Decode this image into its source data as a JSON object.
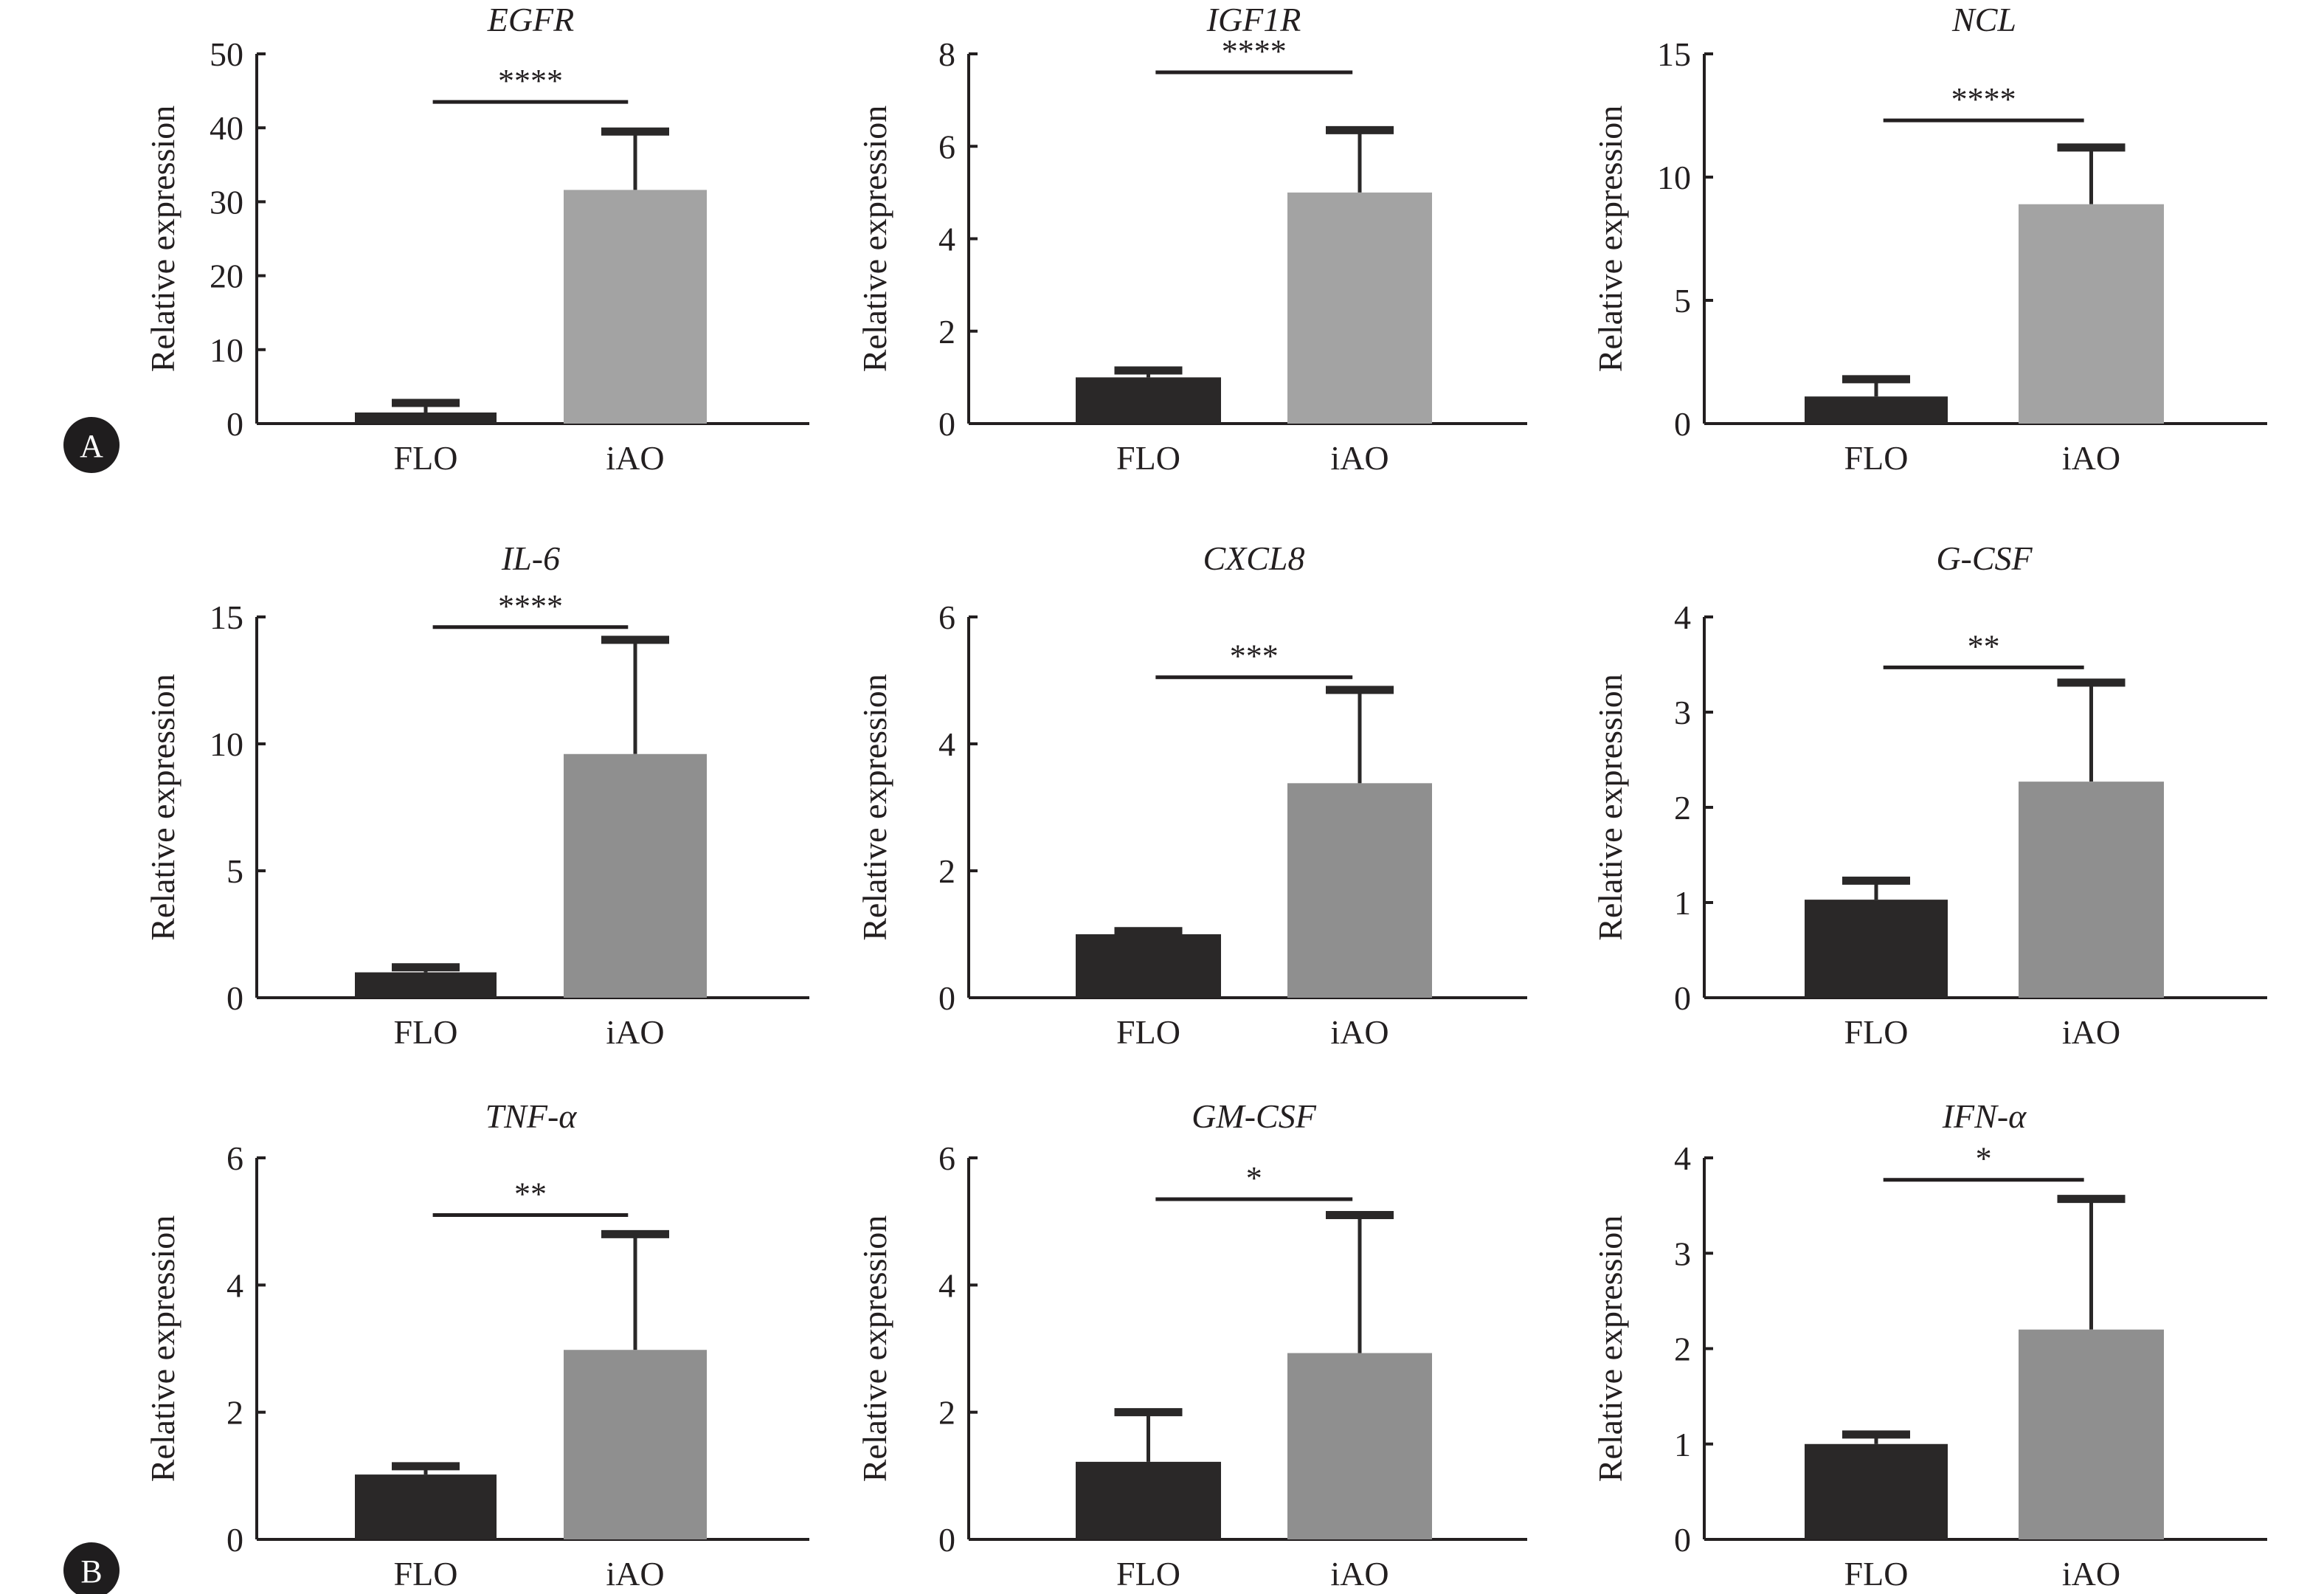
{
  "figure": {
    "panel_labels": [
      "A",
      "B"
    ]
  },
  "colors": {
    "flo": "#2a2828",
    "iao_row1": "#a3a3a3",
    "iao_other": "#8f8f8f",
    "axis": "#231f20"
  },
  "chart_data": [
    {
      "type": "bar",
      "title": "EGFR",
      "ylabel": "Relative expression",
      "xlabel": "",
      "categories": [
        "FLO",
        "iAO"
      ],
      "values": [
        1.5,
        31.6
      ],
      "error_upper": [
        2.8,
        39.5
      ],
      "ylim": [
        0,
        50
      ],
      "yticks": [
        0,
        10,
        20,
        30,
        40,
        50
      ],
      "significance": {
        "label": "****",
        "pair": [
          "FLO",
          "iAO"
        ],
        "y": 43.5
      },
      "grid": false,
      "legend": "none"
    },
    {
      "type": "bar",
      "title": "IGF1R",
      "ylabel": "Relative expression",
      "xlabel": "",
      "categories": [
        "FLO",
        "iAO"
      ],
      "values": [
        1.0,
        5.0
      ],
      "error_upper": [
        1.15,
        6.35
      ],
      "ylim": [
        0,
        8
      ],
      "yticks": [
        0,
        2,
        4,
        6,
        8
      ],
      "significance": {
        "label": "****",
        "pair": [
          "FLO",
          "iAO"
        ],
        "y": 7.6
      },
      "grid": false,
      "legend": "none"
    },
    {
      "type": "bar",
      "title": "NCL",
      "ylabel": "Relative expression",
      "xlabel": "",
      "categories": [
        "FLO",
        "iAO"
      ],
      "values": [
        1.1,
        8.9
      ],
      "error_upper": [
        1.8,
        11.2
      ],
      "ylim": [
        0,
        15
      ],
      "yticks": [
        0,
        5,
        10,
        15
      ],
      "significance": {
        "label": "****",
        "pair": [
          "FLO",
          "iAO"
        ],
        "y": 12.3
      },
      "grid": false,
      "legend": "none"
    },
    {
      "type": "bar",
      "title": "IL-6",
      "ylabel": "Relative expression",
      "xlabel": "",
      "categories": [
        "FLO",
        "iAO"
      ],
      "values": [
        1.0,
        9.6
      ],
      "error_upper": [
        1.2,
        14.1
      ],
      "ylim": [
        0,
        15
      ],
      "yticks": [
        0,
        5,
        10,
        15
      ],
      "significance": {
        "label": "****",
        "pair": [
          "FLO",
          "iAO"
        ],
        "y": 14.6
      },
      "grid": false,
      "legend": "none"
    },
    {
      "type": "bar",
      "title": "CXCL8",
      "ylabel": "Relative expression",
      "xlabel": "",
      "categories": [
        "FLO",
        "iAO"
      ],
      "values": [
        1.0,
        3.38
      ],
      "error_upper": [
        1.05,
        4.85
      ],
      "ylim": [
        0,
        6
      ],
      "yticks": [
        0,
        2,
        4,
        6
      ],
      "significance": {
        "label": "***",
        "pair": [
          "FLO",
          "iAO"
        ],
        "y": 5.05
      },
      "grid": false,
      "legend": "none"
    },
    {
      "type": "bar",
      "title": "G-CSF",
      "ylabel": "Relative expression",
      "xlabel": "",
      "categories": [
        "FLO",
        "iAO"
      ],
      "values": [
        1.03,
        2.27
      ],
      "error_upper": [
        1.23,
        3.31
      ],
      "ylim": [
        0,
        4
      ],
      "yticks": [
        0,
        1,
        2,
        3,
        4
      ],
      "significance": {
        "label": "**",
        "pair": [
          "FLO",
          "iAO"
        ],
        "y": 3.47
      },
      "grid": false,
      "legend": "none"
    },
    {
      "type": "bar",
      "title": "TNF-α",
      "ylabel": "Relative expression",
      "xlabel": "",
      "categories": [
        "FLO",
        "iAO"
      ],
      "values": [
        1.02,
        2.98
      ],
      "error_upper": [
        1.15,
        4.8
      ],
      "ylim": [
        0,
        6
      ],
      "yticks": [
        0,
        2,
        4,
        6
      ],
      "significance": {
        "label": "**",
        "pair": [
          "FLO",
          "iAO"
        ],
        "y": 5.1
      },
      "grid": false,
      "legend": "none"
    },
    {
      "type": "bar",
      "title": "GM-CSF",
      "ylabel": "Relative expression",
      "xlabel": "",
      "categories": [
        "FLO",
        "iAO"
      ],
      "values": [
        1.22,
        2.93
      ],
      "error_upper": [
        2.0,
        5.1
      ],
      "ylim": [
        0,
        6
      ],
      "yticks": [
        0,
        2,
        4,
        6
      ],
      "significance": {
        "label": "*",
        "pair": [
          "FLO",
          "iAO"
        ],
        "y": 5.35
      },
      "grid": false,
      "legend": "none"
    },
    {
      "type": "bar",
      "title": "IFN-α",
      "ylabel": "Relative expression",
      "xlabel": "",
      "categories": [
        "FLO",
        "iAO"
      ],
      "values": [
        1.0,
        2.2
      ],
      "error_upper": [
        1.1,
        3.57
      ],
      "ylim": [
        0,
        4
      ],
      "yticks": [
        0,
        1,
        2,
        3,
        4
      ],
      "significance": {
        "label": "*",
        "pair": [
          "FLO",
          "iAO"
        ],
        "y": 3.77
      },
      "grid": false,
      "legend": "none"
    }
  ]
}
